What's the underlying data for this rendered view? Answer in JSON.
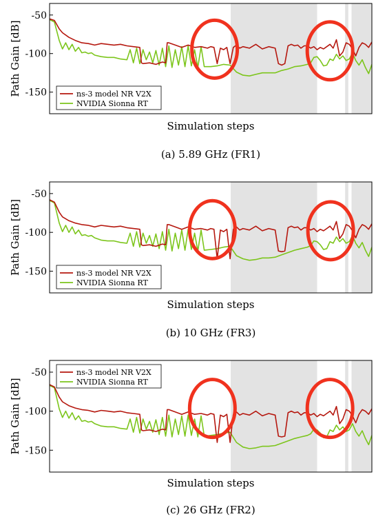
{
  "colors": {
    "ns3": "#b5170e",
    "sionna": "#7cc51b",
    "shade": "#e3e3e3",
    "circle": "#f0321e"
  },
  "chart_data": [
    {
      "type": "line",
      "caption": "(a) 5.89 GHz (FR1)",
      "xlabel": "Simulation steps",
      "ylabel": "Path Gain [dB]",
      "ylim": [
        -178,
        -35
      ],
      "yticks": [
        -50,
        -100,
        -150
      ],
      "xlim": [
        0,
        100
      ],
      "legend_position": "lower-left",
      "grid": false,
      "shaded_x": [
        [
          56.2,
          83.0
        ],
        [
          91.7,
          92.7
        ],
        [
          93.7,
          100
        ]
      ],
      "circles_x": [
        [
          51.2,
          0.415
        ],
        [
          87.0,
          0.43
        ]
      ],
      "series": [
        {
          "name": "ns-3 model NR V2X",
          "x": [
            0,
            1.5,
            3,
            4,
            6,
            8,
            10,
            12,
            14,
            16,
            18,
            20,
            22,
            24,
            26,
            28,
            28.5,
            29,
            31,
            33,
            35,
            36,
            36.5,
            37,
            39,
            41,
            43,
            45,
            47,
            49,
            50,
            51,
            52,
            53,
            54,
            55,
            56,
            57,
            58,
            59,
            60,
            62,
            64,
            66,
            68,
            70,
            71,
            72,
            73,
            74,
            75,
            76,
            77,
            78,
            79,
            80,
            81,
            82,
            83,
            84,
            85,
            86,
            87,
            88,
            89,
            90,
            91,
            92,
            93,
            94,
            95,
            96,
            97,
            98,
            99,
            100
          ],
          "y": [
            -55,
            -57,
            -68,
            -73,
            -79,
            -83,
            -86,
            -87,
            -89,
            -87,
            -88,
            -89,
            -88,
            -90,
            -91,
            -92,
            -112,
            -113,
            -112,
            -114,
            -111,
            -112,
            -86,
            -86,
            -89,
            -92,
            -89,
            -92,
            -91,
            -93,
            -91,
            -92,
            -113,
            -93,
            -95,
            -92,
            -113,
            -92,
            -89,
            -93,
            -91,
            -93,
            -88,
            -94,
            -91,
            -93,
            -113,
            -115,
            -113,
            -90,
            -88,
            -90,
            -89,
            -93,
            -90,
            -90,
            -93,
            -91,
            -95,
            -92,
            -94,
            -91,
            -88,
            -93,
            -82,
            -103,
            -98,
            -86,
            -88,
            -94,
            -103,
            -92,
            -86,
            -88,
            -92,
            -85
          ]
        },
        {
          "name": "NVIDIA Sionna RT",
          "x": [
            0,
            1.5,
            3,
            4,
            5,
            6,
            7,
            8,
            9,
            10,
            11,
            12,
            13,
            14,
            16,
            18,
            20,
            22,
            24,
            25,
            26,
            27,
            28,
            29,
            30,
            31,
            32,
            33,
            34,
            35,
            36,
            37,
            38,
            39,
            40,
            41,
            42,
            43,
            44,
            45,
            46,
            47,
            48,
            50,
            52,
            54,
            56,
            58,
            60,
            62,
            64,
            66,
            68,
            70,
            72,
            74,
            76,
            78,
            80,
            81,
            82,
            83,
            84,
            85,
            86,
            87,
            88,
            89,
            90,
            91,
            92,
            93,
            94,
            95,
            96,
            97,
            98,
            99,
            100
          ],
          "y": [
            -56,
            -59,
            -83,
            -94,
            -86,
            -95,
            -88,
            -97,
            -92,
            -99,
            -98,
            -100,
            -99,
            -102,
            -104,
            -105,
            -105,
            -107,
            -108,
            -95,
            -112,
            -93,
            -113,
            -95,
            -108,
            -98,
            -112,
            -96,
            -115,
            -93,
            -117,
            -90,
            -118,
            -95,
            -115,
            -91,
            -117,
            -90,
            -116,
            -95,
            -118,
            -91,
            -117,
            -117,
            -116,
            -114,
            -115,
            -124,
            -128,
            -129,
            -127,
            -125,
            -125,
            -125,
            -122,
            -120,
            -117,
            -116,
            -114,
            -112,
            -105,
            -104,
            -109,
            -116,
            -115,
            -107,
            -109,
            -101,
            -107,
            -103,
            -109,
            -107,
            -99,
            -109,
            -115,
            -108,
            -118,
            -126,
            -114
          ]
        }
      ]
    },
    {
      "type": "line",
      "caption": "(b) 10 GHz (FR3)",
      "xlabel": "Simulation steps",
      "ylabel": "Path Gain [dB]",
      "ylim": [
        -178,
        -35
      ],
      "yticks": [
        -50,
        -100,
        -150
      ],
      "xlim": [
        0,
        100
      ],
      "legend_position": "lower-left",
      "grid": false,
      "shaded_x": [
        [
          56.2,
          83.0
        ],
        [
          91.7,
          92.7
        ],
        [
          93.7,
          100
        ]
      ],
      "circles_x": [
        [
          50.5,
          0.43
        ],
        [
          87.2,
          0.44
        ]
      ],
      "series": [
        {
          "name": "ns-3 model NR V2X",
          "x": [
            0,
            1.5,
            3,
            4,
            6,
            8,
            10,
            12,
            14,
            16,
            18,
            20,
            22,
            24,
            26,
            28,
            28.5,
            29,
            31,
            33,
            35,
            36,
            36.5,
            37,
            39,
            41,
            43,
            45,
            47,
            49,
            50,
            51,
            52,
            53,
            54,
            55,
            56,
            57,
            58,
            59,
            60,
            62,
            64,
            66,
            68,
            70,
            71,
            72,
            73,
            74,
            75,
            76,
            77,
            78,
            79,
            80,
            81,
            82,
            83,
            84,
            85,
            86,
            87,
            88,
            89,
            90,
            91,
            92,
            93,
            94,
            95,
            96,
            97,
            98,
            99,
            100
          ],
          "y": [
            -58,
            -61,
            -74,
            -80,
            -85,
            -88,
            -90,
            -91,
            -93,
            -91,
            -92,
            -93,
            -92,
            -94,
            -95,
            -96,
            -116,
            -117,
            -116,
            -118,
            -115,
            -116,
            -90,
            -90,
            -93,
            -96,
            -93,
            -96,
            -95,
            -97,
            -95,
            -96,
            -134,
            -97,
            -99,
            -96,
            -134,
            -96,
            -93,
            -97,
            -95,
            -97,
            -92,
            -98,
            -95,
            -97,
            -124,
            -125,
            -124,
            -94,
            -92,
            -94,
            -93,
            -97,
            -94,
            -94,
            -97,
            -95,
            -99,
            -96,
            -98,
            -95,
            -92,
            -97,
            -86,
            -108,
            -102,
            -90,
            -92,
            -98,
            -107,
            -96,
            -90,
            -92,
            -96,
            -89
          ]
        },
        {
          "name": "NVIDIA Sionna RT",
          "x": [
            0,
            1.5,
            3,
            4,
            5,
            6,
            7,
            8,
            9,
            10,
            11,
            12,
            13,
            14,
            16,
            18,
            20,
            22,
            24,
            25,
            26,
            27,
            28,
            29,
            30,
            31,
            32,
            33,
            34,
            35,
            36,
            37,
            38,
            39,
            40,
            41,
            42,
            43,
            44,
            45,
            46,
            47,
            48,
            50,
            52,
            54,
            56,
            58,
            60,
            62,
            64,
            66,
            68,
            70,
            72,
            74,
            76,
            78,
            80,
            81,
            82,
            83,
            84,
            85,
            86,
            87,
            88,
            89,
            90,
            91,
            92,
            93,
            94,
            95,
            96,
            97,
            98,
            99,
            100
          ],
          "y": [
            -59,
            -62,
            -88,
            -99,
            -91,
            -100,
            -93,
            -102,
            -97,
            -104,
            -103,
            -105,
            -104,
            -107,
            -110,
            -111,
            -111,
            -113,
            -114,
            -101,
            -118,
            -99,
            -119,
            -101,
            -114,
            -104,
            -118,
            -102,
            -121,
            -99,
            -123,
            -96,
            -124,
            -101,
            -121,
            -97,
            -123,
            -96,
            -122,
            -101,
            -124,
            -97,
            -123,
            -122,
            -121,
            -119,
            -118,
            -130,
            -134,
            -136,
            -135,
            -133,
            -133,
            -132,
            -129,
            -126,
            -123,
            -121,
            -119,
            -117,
            -111,
            -112,
            -116,
            -122,
            -121,
            -112,
            -114,
            -106,
            -112,
            -108,
            -114,
            -112,
            -104,
            -114,
            -120,
            -113,
            -123,
            -131,
            -119
          ]
        }
      ]
    },
    {
      "type": "line",
      "caption": "(c) 26 GHz (FR2)",
      "xlabel": "Simulation steps",
      "ylabel": "Path Gain [dB]",
      "ylim": [
        -178,
        -35
      ],
      "yticks": [
        -50,
        -100,
        -150
      ],
      "xlim": [
        0,
        100
      ],
      "legend_position": "top-left",
      "grid": false,
      "shaded_x": [
        [
          56.2,
          83.0
        ],
        [
          91.7,
          92.7
        ],
        [
          93.7,
          100
        ]
      ],
      "circles_x": [
        [
          50.5,
          0.43
        ],
        [
          87.0,
          0.43
        ]
      ],
      "series": [
        {
          "name": "ns-3 model NR V2X",
          "x": [
            0,
            1.5,
            3,
            4,
            6,
            8,
            10,
            12,
            14,
            16,
            18,
            20,
            22,
            24,
            26,
            28,
            28.5,
            29,
            31,
            33,
            35,
            36,
            36.5,
            37,
            39,
            41,
            43,
            45,
            47,
            49,
            50,
            51,
            52,
            53,
            54,
            55,
            56,
            57,
            58,
            59,
            60,
            62,
            64,
            66,
            68,
            70,
            71,
            72,
            73,
            74,
            75,
            76,
            77,
            78,
            79,
            80,
            81,
            82,
            83,
            84,
            85,
            86,
            87,
            88,
            89,
            90,
            91,
            92,
            93,
            94,
            95,
            96,
            97,
            98,
            99,
            100
          ],
          "y": [
            -66,
            -69,
            -82,
            -88,
            -93,
            -96,
            -98,
            -99,
            -101,
            -99,
            -100,
            -101,
            -100,
            -102,
            -103,
            -104,
            -124,
            -125,
            -124,
            -126,
            -123,
            -124,
            -98,
            -98,
            -101,
            -104,
            -101,
            -104,
            -103,
            -105,
            -103,
            -104,
            -140,
            -105,
            -107,
            -104,
            -140,
            -104,
            -101,
            -105,
            -103,
            -105,
            -100,
            -106,
            -103,
            -105,
            -132,
            -133,
            -132,
            -102,
            -100,
            -102,
            -101,
            -105,
            -102,
            -102,
            -105,
            -103,
            -107,
            -104,
            -106,
            -103,
            -100,
            -105,
            -94,
            -116,
            -110,
            -98,
            -100,
            -106,
            -115,
            -104,
            -98,
            -100,
            -104,
            -97
          ]
        },
        {
          "name": "NVIDIA Sionna RT",
          "x": [
            0,
            1.5,
            3,
            4,
            5,
            6,
            7,
            8,
            9,
            10,
            11,
            12,
            13,
            14,
            16,
            18,
            20,
            22,
            24,
            25,
            26,
            27,
            28,
            29,
            30,
            31,
            32,
            33,
            34,
            35,
            36,
            37,
            38,
            39,
            40,
            41,
            42,
            43,
            44,
            45,
            46,
            47,
            48,
            50,
            52,
            54,
            56,
            58,
            60,
            62,
            64,
            66,
            68,
            70,
            72,
            74,
            76,
            78,
            80,
            81,
            82,
            83,
            84,
            85,
            86,
            87,
            88,
            89,
            90,
            91,
            92,
            93,
            94,
            95,
            96,
            97,
            98,
            99,
            100
          ],
          "y": [
            -67,
            -70,
            -97,
            -108,
            -100,
            -109,
            -102,
            -111,
            -106,
            -113,
            -112,
            -114,
            -113,
            -116,
            -119,
            -120,
            -120,
            -122,
            -123,
            -110,
            -127,
            -108,
            -128,
            -110,
            -123,
            -113,
            -127,
            -111,
            -130,
            -108,
            -132,
            -105,
            -133,
            -110,
            -130,
            -106,
            -132,
            -105,
            -131,
            -110,
            -133,
            -106,
            -132,
            -131,
            -130,
            -128,
            -127,
            -140,
            -146,
            -148,
            -147,
            -145,
            -145,
            -144,
            -141,
            -138,
            -135,
            -133,
            -131,
            -129,
            -123,
            -124,
            -128,
            -134,
            -133,
            -124,
            -126,
            -118,
            -124,
            -120,
            -126,
            -124,
            -116,
            -126,
            -132,
            -125,
            -135,
            -143,
            -131
          ]
        }
      ]
    }
  ]
}
